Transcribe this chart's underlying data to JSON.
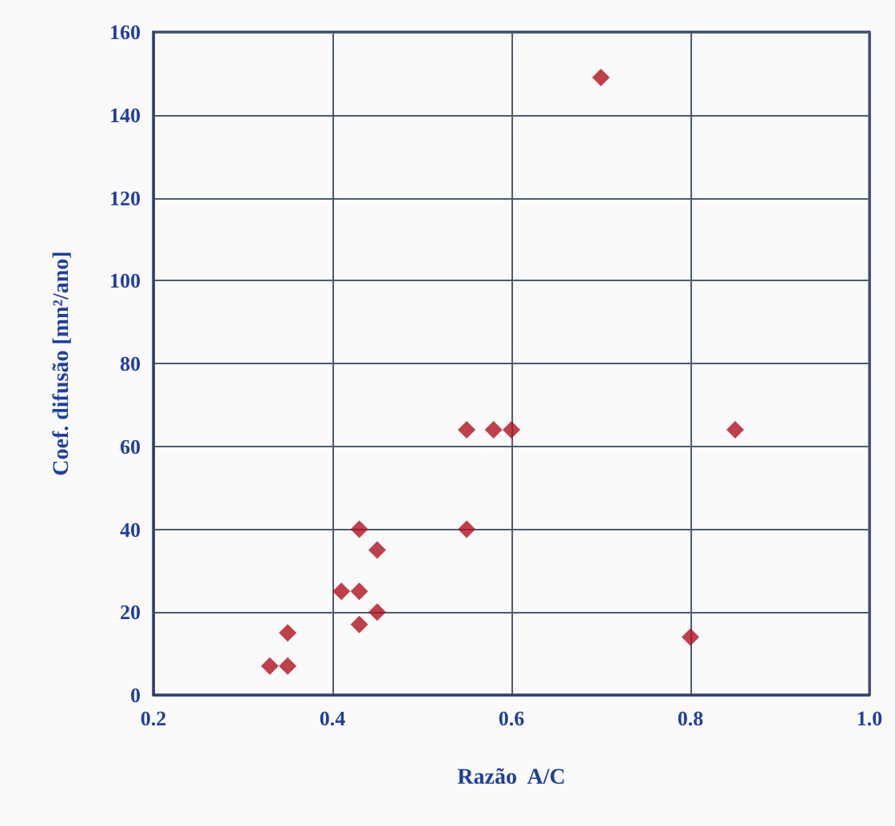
{
  "chart_data": {
    "type": "scatter",
    "xlabel": "Razão  A/C",
    "ylabel": "Coef. difusão [mn²/ano]",
    "x": [
      0.33,
      0.35,
      0.35,
      0.41,
      0.43,
      0.43,
      0.43,
      0.45,
      0.45,
      0.55,
      0.55,
      0.58,
      0.6,
      0.7,
      0.8,
      0.85
    ],
    "series": [
      {
        "color": "#b0101e",
        "values": [
          7,
          7,
          15,
          25,
          25,
          17,
          40,
          35,
          20,
          40,
          64,
          64,
          64,
          149,
          14,
          64
        ]
      }
    ],
    "xlim": [
      0.2,
      1.0
    ],
    "xticks": [
      {
        "value": 0.2,
        "label": "0.2"
      },
      {
        "value": 0.4,
        "label": "0.4"
      },
      {
        "value": 0.6,
        "label": "0.6"
      },
      {
        "value": 0.8,
        "label": "0.8"
      },
      {
        "value": 1.0,
        "label": "1.0"
      }
    ],
    "ylim": [
      0,
      160
    ],
    "yticks": [
      0,
      20,
      40,
      60,
      80,
      100,
      120,
      140,
      160
    ],
    "grid": true,
    "marker": "diamond"
  }
}
